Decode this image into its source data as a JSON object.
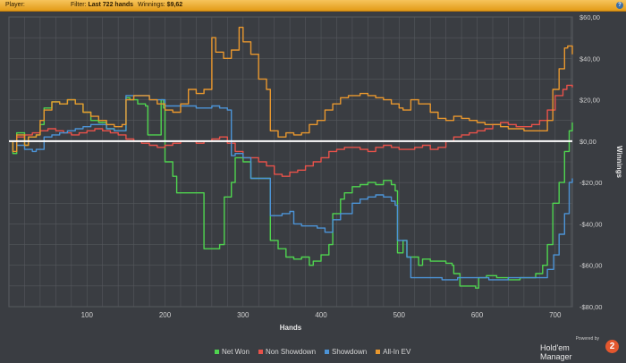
{
  "topbar": {
    "player_label": "Player:",
    "filter_label": "Filter:",
    "filter_value": "Last 722 hands",
    "winnings_label": "Winnings:",
    "winnings_value": "$9,62",
    "help_icon": "help-icon"
  },
  "brand": {
    "powered_by": "Powered by",
    "name": "Hold'em Manager",
    "version": "2"
  },
  "colors": {
    "background": "#3a3d42",
    "plot_bg": "#3a3d42",
    "grid": "#55585d",
    "zero_line": "#ffffff"
  },
  "chart_data": {
    "type": "line",
    "xlabel": "Hands",
    "ylabel": "Winnings",
    "xlim": [
      0,
      722
    ],
    "ylim": [
      -80,
      60
    ],
    "x_ticks": [
      100,
      200,
      300,
      400,
      500,
      600,
      700
    ],
    "y_ticks": [
      -80,
      -60,
      -40,
      -20,
      0,
      20,
      40,
      60
    ],
    "y_tick_labels": [
      "-$80,00",
      "-$60,00",
      "-$40,00",
      "-$20,00",
      "$0,00",
      "$20,00",
      "$40,00",
      "$60,00"
    ],
    "grid": true,
    "legend_position": "bottom-center",
    "series": [
      {
        "name": "Net Won",
        "color": "#4fd44f",
        "points": [
          [
            0,
            0
          ],
          [
            5,
            -6
          ],
          [
            10,
            4
          ],
          [
            20,
            -2
          ],
          [
            25,
            2
          ],
          [
            35,
            3
          ],
          [
            40,
            8
          ],
          [
            45,
            16
          ],
          [
            55,
            19
          ],
          [
            65,
            18
          ],
          [
            75,
            20
          ],
          [
            85,
            18
          ],
          [
            95,
            14
          ],
          [
            105,
            10
          ],
          [
            115,
            9
          ],
          [
            125,
            6
          ],
          [
            135,
            5
          ],
          [
            145,
            5
          ],
          [
            150,
            21
          ],
          [
            155,
            20
          ],
          [
            165,
            18
          ],
          [
            175,
            17
          ],
          [
            178,
            3
          ],
          [
            195,
            20
          ],
          [
            198,
            16
          ],
          [
            200,
            -10
          ],
          [
            210,
            -17
          ],
          [
            215,
            -25
          ],
          [
            230,
            -25
          ],
          [
            245,
            -25
          ],
          [
            250,
            -52
          ],
          [
            260,
            -52
          ],
          [
            270,
            -50
          ],
          [
            276,
            -27
          ],
          [
            285,
            -20
          ],
          [
            290,
            -8
          ],
          [
            296,
            -8
          ],
          [
            300,
            -10
          ],
          [
            310,
            -18
          ],
          [
            330,
            -18
          ],
          [
            335,
            -48
          ],
          [
            345,
            -52
          ],
          [
            355,
            -56
          ],
          [
            365,
            -57
          ],
          [
            375,
            -56
          ],
          [
            385,
            -60
          ],
          [
            390,
            -58
          ],
          [
            400,
            -55
          ],
          [
            410,
            -50
          ],
          [
            415,
            -35
          ],
          [
            425,
            -28
          ],
          [
            430,
            -25
          ],
          [
            440,
            -22
          ],
          [
            450,
            -21
          ],
          [
            460,
            -20
          ],
          [
            470,
            -21
          ],
          [
            480,
            -19
          ],
          [
            490,
            -21
          ],
          [
            495,
            -24
          ],
          [
            498,
            -54
          ],
          [
            505,
            -48
          ],
          [
            510,
            -56
          ],
          [
            525,
            -60
          ],
          [
            530,
            -57
          ],
          [
            540,
            -58
          ],
          [
            560,
            -59
          ],
          [
            568,
            -60
          ],
          [
            570,
            -64
          ],
          [
            578,
            -70
          ],
          [
            588,
            -70
          ],
          [
            598,
            -71
          ],
          [
            602,
            -66
          ],
          [
            612,
            -65
          ],
          [
            625,
            -66
          ],
          [
            640,
            -67
          ],
          [
            655,
            -66
          ],
          [
            665,
            -66
          ],
          [
            675,
            -64
          ],
          [
            684,
            -60
          ],
          [
            690,
            -50
          ],
          [
            697,
            -30
          ],
          [
            705,
            -20
          ],
          [
            712,
            -5
          ],
          [
            718,
            5
          ],
          [
            722,
            9
          ]
        ]
      },
      {
        "name": "Non Showdown",
        "color": "#e8524a",
        "points": [
          [
            0,
            0
          ],
          [
            10,
            2
          ],
          [
            20,
            3
          ],
          [
            30,
            4
          ],
          [
            40,
            5
          ],
          [
            50,
            6
          ],
          [
            60,
            5
          ],
          [
            70,
            4
          ],
          [
            80,
            3
          ],
          [
            90,
            4
          ],
          [
            100,
            5
          ],
          [
            110,
            6
          ],
          [
            120,
            5
          ],
          [
            130,
            4
          ],
          [
            140,
            3
          ],
          [
            150,
            1
          ],
          [
            160,
            0
          ],
          [
            170,
            -1
          ],
          [
            180,
            -2
          ],
          [
            190,
            -3
          ],
          [
            200,
            -2
          ],
          [
            210,
            -1
          ],
          [
            220,
            0
          ],
          [
            230,
            0
          ],
          [
            240,
            -1
          ],
          [
            250,
            0
          ],
          [
            260,
            1
          ],
          [
            270,
            2
          ],
          [
            280,
            -1
          ],
          [
            290,
            -5
          ],
          [
            300,
            -8
          ],
          [
            310,
            -8
          ],
          [
            320,
            -10
          ],
          [
            330,
            -12
          ],
          [
            340,
            -16
          ],
          [
            350,
            -17
          ],
          [
            360,
            -15
          ],
          [
            370,
            -14
          ],
          [
            380,
            -12
          ],
          [
            390,
            -10
          ],
          [
            400,
            -8
          ],
          [
            410,
            -5
          ],
          [
            420,
            -4
          ],
          [
            430,
            -3
          ],
          [
            440,
            -3
          ],
          [
            450,
            -4
          ],
          [
            460,
            -5
          ],
          [
            470,
            -3
          ],
          [
            480,
            -2
          ],
          [
            490,
            -3
          ],
          [
            500,
            -4
          ],
          [
            510,
            -4
          ],
          [
            520,
            -3
          ],
          [
            530,
            -2
          ],
          [
            540,
            -4
          ],
          [
            550,
            -3
          ],
          [
            560,
            0
          ],
          [
            570,
            2
          ],
          [
            580,
            3
          ],
          [
            590,
            4
          ],
          [
            600,
            5
          ],
          [
            610,
            6
          ],
          [
            620,
            8
          ],
          [
            630,
            9
          ],
          [
            640,
            8
          ],
          [
            650,
            7
          ],
          [
            660,
            7
          ],
          [
            670,
            8
          ],
          [
            680,
            10
          ],
          [
            690,
            15
          ],
          [
            700,
            22
          ],
          [
            710,
            25
          ],
          [
            715,
            27
          ],
          [
            722,
            26
          ]
        ]
      },
      {
        "name": "Showdown",
        "color": "#4c93d6",
        "points": [
          [
            0,
            0
          ],
          [
            10,
            -2
          ],
          [
            20,
            -4
          ],
          [
            30,
            -5
          ],
          [
            35,
            -4
          ],
          [
            45,
            2
          ],
          [
            55,
            3
          ],
          [
            65,
            4
          ],
          [
            75,
            5
          ],
          [
            85,
            6
          ],
          [
            95,
            7
          ],
          [
            105,
            8
          ],
          [
            115,
            8
          ],
          [
            125,
            6
          ],
          [
            135,
            5
          ],
          [
            145,
            5
          ],
          [
            150,
            22
          ],
          [
            155,
            22
          ],
          [
            165,
            22
          ],
          [
            175,
            22
          ],
          [
            180,
            20
          ],
          [
            195,
            20
          ],
          [
            200,
            17
          ],
          [
            220,
            17
          ],
          [
            240,
            16
          ],
          [
            260,
            17
          ],
          [
            270,
            16
          ],
          [
            280,
            15
          ],
          [
            285,
            -7
          ],
          [
            290,
            -6
          ],
          [
            300,
            -8
          ],
          [
            310,
            -18
          ],
          [
            330,
            -18
          ],
          [
            335,
            -36
          ],
          [
            350,
            -35
          ],
          [
            360,
            -34
          ],
          [
            365,
            -40
          ],
          [
            375,
            -41
          ],
          [
            385,
            -41
          ],
          [
            395,
            -42
          ],
          [
            405,
            -44
          ],
          [
            415,
            -38
          ],
          [
            425,
            -35
          ],
          [
            440,
            -30
          ],
          [
            450,
            -28
          ],
          [
            460,
            -27
          ],
          [
            470,
            -26
          ],
          [
            480,
            -27
          ],
          [
            490,
            -29
          ],
          [
            495,
            -31
          ],
          [
            498,
            -48
          ],
          [
            505,
            -48
          ],
          [
            510,
            -56
          ],
          [
            515,
            -66
          ],
          [
            525,
            -66
          ],
          [
            540,
            -66
          ],
          [
            555,
            -67
          ],
          [
            565,
            -67
          ],
          [
            575,
            -66
          ],
          [
            580,
            -66
          ],
          [
            590,
            -66
          ],
          [
            600,
            -66
          ],
          [
            615,
            -67
          ],
          [
            625,
            -67
          ],
          [
            640,
            -66
          ],
          [
            655,
            -66
          ],
          [
            670,
            -66
          ],
          [
            680,
            -66
          ],
          [
            690,
            -62
          ],
          [
            698,
            -55
          ],
          [
            705,
            -45
          ],
          [
            712,
            -35
          ],
          [
            718,
            -20
          ],
          [
            722,
            -18
          ]
        ]
      },
      {
        "name": "All-In EV",
        "color": "#e8972e",
        "points": [
          [
            0,
            0
          ],
          [
            5,
            -5
          ],
          [
            10,
            3
          ],
          [
            20,
            -2
          ],
          [
            25,
            2
          ],
          [
            35,
            3
          ],
          [
            40,
            10
          ],
          [
            45,
            15
          ],
          [
            55,
            19
          ],
          [
            65,
            18
          ],
          [
            75,
            20
          ],
          [
            85,
            18
          ],
          [
            95,
            14
          ],
          [
            105,
            12
          ],
          [
            115,
            10
          ],
          [
            125,
            8
          ],
          [
            135,
            7
          ],
          [
            145,
            8
          ],
          [
            150,
            20
          ],
          [
            160,
            22
          ],
          [
            170,
            22
          ],
          [
            180,
            20
          ],
          [
            190,
            18
          ],
          [
            200,
            15
          ],
          [
            210,
            14
          ],
          [
            220,
            18
          ],
          [
            230,
            25
          ],
          [
            240,
            23
          ],
          [
            250,
            25
          ],
          [
            260,
            50
          ],
          [
            265,
            43
          ],
          [
            275,
            40
          ],
          [
            285,
            44
          ],
          [
            295,
            55
          ],
          [
            300,
            48
          ],
          [
            310,
            42
          ],
          [
            320,
            30
          ],
          [
            330,
            25
          ],
          [
            335,
            5
          ],
          [
            345,
            2
          ],
          [
            355,
            4
          ],
          [
            365,
            3
          ],
          [
            375,
            4
          ],
          [
            385,
            8
          ],
          [
            395,
            10
          ],
          [
            405,
            15
          ],
          [
            415,
            18
          ],
          [
            425,
            21
          ],
          [
            435,
            22
          ],
          [
            450,
            23
          ],
          [
            460,
            22
          ],
          [
            470,
            21
          ],
          [
            480,
            20
          ],
          [
            490,
            18
          ],
          [
            500,
            16
          ],
          [
            505,
            15
          ],
          [
            515,
            20
          ],
          [
            525,
            18
          ],
          [
            540,
            14
          ],
          [
            550,
            11
          ],
          [
            560,
            10
          ],
          [
            570,
            12
          ],
          [
            580,
            11
          ],
          [
            590,
            10
          ],
          [
            600,
            9
          ],
          [
            610,
            8
          ],
          [
            620,
            8
          ],
          [
            630,
            7
          ],
          [
            640,
            6
          ],
          [
            650,
            6
          ],
          [
            660,
            5
          ],
          [
            670,
            5
          ],
          [
            680,
            5
          ],
          [
            690,
            10
          ],
          [
            697,
            25
          ],
          [
            705,
            35
          ],
          [
            712,
            45
          ],
          [
            716,
            46
          ],
          [
            722,
            42
          ]
        ]
      }
    ]
  }
}
